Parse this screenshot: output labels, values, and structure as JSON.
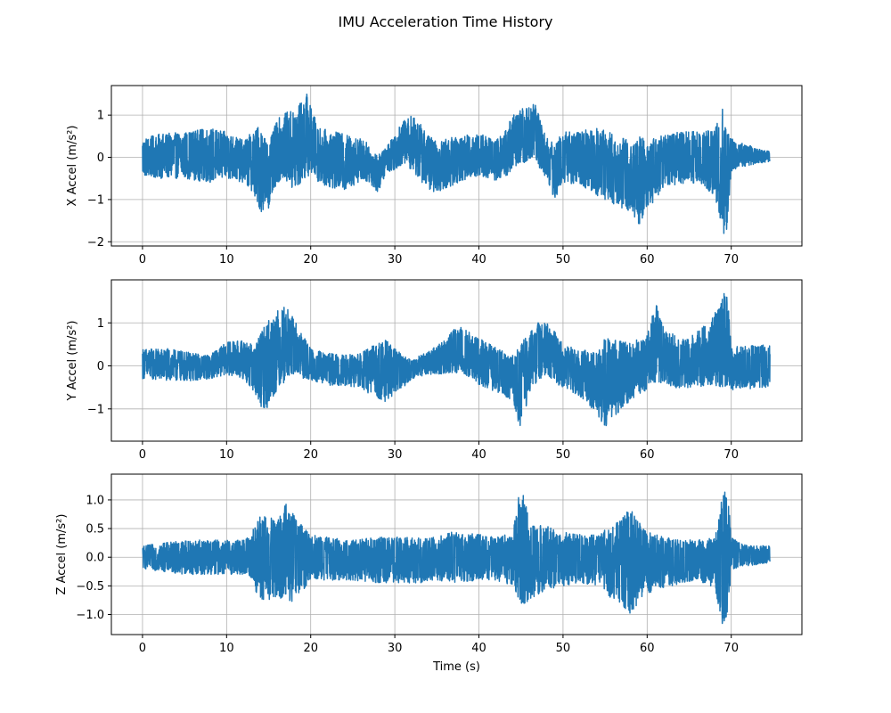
{
  "figure": {
    "title": "IMU Acceleration Time History"
  },
  "chart_data": [
    {
      "type": "line",
      "title": "",
      "xlabel": "",
      "ylabel": "X Accel (m/s²)",
      "xlim": [
        -3.7,
        78.4
      ],
      "ylim": [
        -2.1,
        1.7
      ],
      "xticks": [
        0,
        10,
        20,
        30,
        40,
        50,
        60,
        70
      ],
      "yticks": [
        -2,
        -1,
        0,
        1
      ],
      "ytick_labels": [
        "−2",
        "−1",
        "0",
        "1"
      ],
      "grid": true,
      "line_color": "#1f77b4",
      "series": [
        {
          "x": [
            0,
            75
          ],
          "sample_rate_hz": 100,
          "envelope": {
            "t": [
              0,
              2,
              5,
              8,
              10,
              12,
              13,
              14,
              15,
              16,
              17,
              18,
              19,
              19.5,
              20,
              21,
              22,
              24,
              26,
              27,
              28,
              29,
              30,
              31,
              32,
              33,
              34,
              35,
              36,
              38,
              40,
              42,
              43,
              44,
              45,
              46,
              46.5,
              47,
              48,
              49,
              50,
              52,
              54,
              56,
              58,
              59,
              60,
              62,
              64,
              66,
              68,
              69,
              69.5,
              70,
              71,
              72,
              73,
              74.5
            ],
            "upper": [
              0.45,
              0.55,
              0.6,
              0.7,
              0.6,
              0.4,
              0.6,
              0.8,
              0.3,
              0.9,
              1.05,
              1.15,
              1.35,
              1.55,
              1.2,
              0.7,
              0.65,
              0.55,
              0.45,
              0.3,
              0.05,
              0.25,
              0.6,
              0.85,
              1.0,
              0.8,
              0.55,
              0.35,
              0.45,
              0.5,
              0.6,
              0.4,
              0.6,
              1.0,
              1.15,
              1.25,
              1.35,
              1.1,
              0.5,
              0.3,
              0.65,
              0.6,
              0.75,
              0.55,
              0.4,
              0.5,
              0.45,
              0.55,
              0.6,
              0.65,
              0.7,
              1.2,
              0.6,
              0.45,
              0.35,
              0.3,
              0.2,
              0.15
            ],
            "lower": [
              -0.45,
              -0.5,
              -0.5,
              -0.6,
              -0.5,
              -0.6,
              -0.8,
              -1.3,
              -1.2,
              -0.6,
              -0.5,
              -0.9,
              -0.6,
              -0.5,
              -0.4,
              -0.6,
              -0.7,
              -0.8,
              -0.55,
              -0.6,
              -0.85,
              -0.35,
              -0.3,
              -0.15,
              -0.3,
              -0.55,
              -0.75,
              -0.85,
              -0.75,
              -0.55,
              -0.45,
              -0.55,
              -0.5,
              -0.3,
              -0.2,
              -0.1,
              -0.05,
              -0.2,
              -0.5,
              -1.0,
              -0.6,
              -0.65,
              -0.9,
              -1.1,
              -1.3,
              -1.6,
              -1.3,
              -0.7,
              -0.65,
              -0.6,
              -0.9,
              -1.95,
              -1.7,
              -0.35,
              -0.25,
              -0.2,
              -0.15,
              -0.1
            ]
          }
        }
      ]
    },
    {
      "type": "line",
      "title": "",
      "xlabel": "",
      "ylabel": "Y Accel (m/s²)",
      "xlim": [
        -3.7,
        78.4
      ],
      "ylim": [
        -1.75,
        2.0
      ],
      "xticks": [
        0,
        10,
        20,
        30,
        40,
        50,
        60,
        70
      ],
      "yticks": [
        -1,
        0,
        1
      ],
      "ytick_labels": [
        "−1",
        "0",
        "1"
      ],
      "grid": true,
      "line_color": "#1f77b4",
      "series": [
        {
          "x": [
            0,
            75
          ],
          "sample_rate_hz": 100,
          "envelope": {
            "t": [
              0,
              3,
              6,
              8,
              10,
              12,
              13,
              14,
              15,
              16,
              17,
              18,
              19,
              20,
              22,
              24,
              26,
              28,
              29,
              30,
              31,
              32,
              34,
              36,
              37,
              38,
              39,
              40,
              42,
              44,
              45,
              46,
              47,
              48,
              49,
              50,
              52,
              54,
              55,
              56,
              58,
              60,
              61,
              62,
              64,
              66,
              68,
              69,
              69.5,
              70,
              71,
              72,
              74.5
            ],
            "upper": [
              0.4,
              0.4,
              0.3,
              0.25,
              0.55,
              0.6,
              0.5,
              0.75,
              1.1,
              1.3,
              1.4,
              1.1,
              0.75,
              0.4,
              0.3,
              0.25,
              0.3,
              0.55,
              0.6,
              0.4,
              0.25,
              0.15,
              0.35,
              0.6,
              0.85,
              0.95,
              0.75,
              0.65,
              0.45,
              0.25,
              0.55,
              0.75,
              1.0,
              1.05,
              0.8,
              0.5,
              0.4,
              0.3,
              0.75,
              0.6,
              0.55,
              0.7,
              1.5,
              0.9,
              0.6,
              0.8,
              1.2,
              1.7,
              1.8,
              0.45,
              0.45,
              0.5,
              0.5
            ],
            "lower": [
              -0.3,
              -0.35,
              -0.35,
              -0.3,
              -0.2,
              -0.3,
              -0.55,
              -0.95,
              -1.0,
              -0.55,
              -0.35,
              -0.2,
              -0.3,
              -0.35,
              -0.45,
              -0.45,
              -0.55,
              -0.75,
              -0.85,
              -0.65,
              -0.5,
              -0.3,
              -0.2,
              -0.2,
              -0.15,
              -0.2,
              -0.3,
              -0.45,
              -0.6,
              -0.8,
              -1.55,
              -0.6,
              -0.35,
              -0.2,
              -0.4,
              -0.5,
              -0.7,
              -1.1,
              -1.45,
              -1.2,
              -0.8,
              -0.55,
              -0.4,
              -0.4,
              -0.55,
              -0.5,
              -0.45,
              -0.5,
              -0.55,
              -0.6,
              -0.55,
              -0.55,
              -0.5
            ]
          }
        }
      ]
    },
    {
      "type": "line",
      "title": "",
      "xlabel": "Time (s)",
      "ylabel": "Z Accel (m/s²)",
      "xlim": [
        -3.7,
        78.4
      ],
      "ylim": [
        -1.35,
        1.45
      ],
      "xticks": [
        0,
        10,
        20,
        30,
        40,
        50,
        60,
        70
      ],
      "yticks": [
        -1.0,
        -0.5,
        0.0,
        0.5,
        1.0
      ],
      "ytick_labels": [
        "−1.0",
        "−0.5",
        "0.0",
        "0.5",
        "1.0"
      ],
      "grid": true,
      "line_color": "#1f77b4",
      "series": [
        {
          "x": [
            0,
            75
          ],
          "sample_rate_hz": 100,
          "envelope": {
            "t": [
              0,
              5,
              10,
              12,
              13,
              14,
              15,
              16,
              17,
              18,
              19,
              20,
              22,
              25,
              28,
              30,
              33,
              35,
              37,
              40,
              42,
              44,
              45,
              46,
              47,
              48,
              50,
              52,
              54,
              56,
              57,
              58,
              59,
              60,
              62,
              64,
              66,
              68,
              69,
              69.5,
              70,
              71,
              72,
              74.5
            ],
            "upper": [
              0.2,
              0.3,
              0.3,
              0.3,
              0.45,
              0.75,
              0.7,
              0.65,
              0.95,
              0.75,
              0.55,
              0.4,
              0.35,
              0.3,
              0.35,
              0.35,
              0.35,
              0.35,
              0.45,
              0.4,
              0.35,
              0.45,
              1.35,
              0.6,
              0.6,
              0.55,
              0.45,
              0.4,
              0.4,
              0.55,
              0.7,
              0.85,
              0.65,
              0.45,
              0.35,
              0.3,
              0.3,
              0.35,
              1.1,
              1.3,
              0.35,
              0.25,
              0.2,
              0.2
            ],
            "lower": [
              -0.2,
              -0.3,
              -0.3,
              -0.3,
              -0.4,
              -0.85,
              -0.75,
              -0.8,
              -0.7,
              -0.85,
              -0.6,
              -0.4,
              -0.4,
              -0.4,
              -0.45,
              -0.45,
              -0.45,
              -0.4,
              -0.45,
              -0.4,
              -0.4,
              -0.5,
              -0.85,
              -0.75,
              -0.65,
              -0.6,
              -0.5,
              -0.45,
              -0.5,
              -0.75,
              -0.85,
              -1.0,
              -0.8,
              -0.65,
              -0.55,
              -0.45,
              -0.4,
              -0.55,
              -1.2,
              -1.1,
              -0.25,
              -0.15,
              -0.15,
              -0.1
            ]
          }
        }
      ]
    }
  ]
}
